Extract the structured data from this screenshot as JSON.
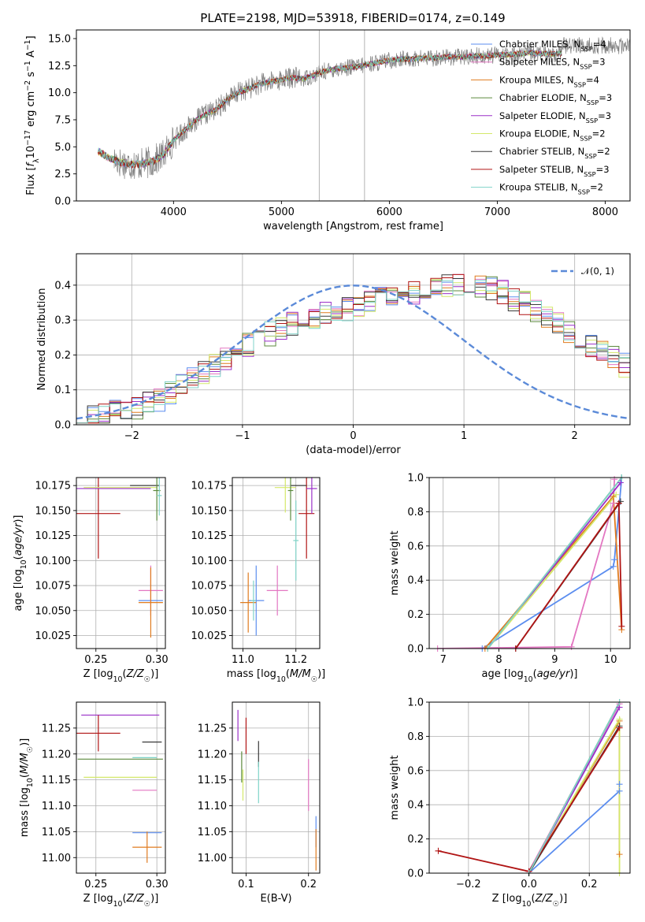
{
  "figure": {
    "title": "PLATE=2198, MJD=53918, FIBERID=0174, z=0.149"
  },
  "colors": {
    "Chabrier MILES": "#5b8def",
    "Salpeter MILES": "#e377c2",
    "Kroupa MILES": "#e07b1f",
    "Chabrier ELODIE": "#5c8a3e",
    "Salpeter ELODIE": "#9b30c8",
    "Kroupa ELODIE": "#d4e86a",
    "Chabrier STELIB": "#3a3a3a",
    "Salpeter STELIB": "#b01414",
    "Kroupa STELIB": "#7fd3c8",
    "data": "#808080",
    "normal": "#5b8ad8"
  },
  "chart_data": [
    {
      "id": "spectrum",
      "type": "line",
      "title": "PLATE=2198, MJD=53918, FIBERID=0174, z=0.149",
      "xlabel": "wavelength [Angstrom, rest frame]",
      "ylabel": "Flux [f_λ 10^-17 erg cm^-2 s^-1 A^-1]",
      "xlim": [
        3100,
        8230
      ],
      "ylim": [
        0,
        15.8
      ],
      "xticks": [
        4000,
        5000,
        6000,
        7000,
        8000
      ],
      "yticks": [
        0.0,
        2.5,
        5.0,
        7.5,
        10.0,
        12.5,
        15.0
      ],
      "grid": false,
      "legend_position": "top-right",
      "legend": [
        {
          "label": "Chabrier MILES, N",
          "sub": "SSP",
          "tail": "=4",
          "series": "Chabrier MILES"
        },
        {
          "label": "Salpeter MILES, N",
          "sub": "SSP",
          "tail": "=3",
          "series": "Salpeter MILES"
        },
        {
          "label": "Kroupa MILES, N",
          "sub": "SSP",
          "tail": "=4",
          "series": "Kroupa MILES"
        },
        {
          "label": "Chabrier ELODIE, N",
          "sub": "SSP",
          "tail": "=3",
          "series": "Chabrier ELODIE"
        },
        {
          "label": "Salpeter ELODIE, N",
          "sub": "SSP",
          "tail": "=3",
          "series": "Salpeter ELODIE"
        },
        {
          "label": "Kroupa ELODIE, N",
          "sub": "SSP",
          "tail": "=2",
          "series": "Kroupa ELODIE"
        },
        {
          "label": "Chabrier STELIB, N",
          "sub": "SSP",
          "tail": "=2",
          "series": "Chabrier STELIB"
        },
        {
          "label": "Salpeter STELIB, N",
          "sub": "SSP",
          "tail": "=3",
          "series": "Salpeter STELIB"
        },
        {
          "label": "Kroupa STELIB, N",
          "sub": "SSP",
          "tail": "=2",
          "series": "Kroupa STELIB"
        }
      ],
      "continuum": {
        "x": [
          3300,
          3400,
          3500,
          3600,
          3700,
          3800,
          3900,
          4000,
          4100,
          4200,
          4300,
          4400,
          4500,
          4600,
          4700,
          4800,
          4900,
          5000,
          5100,
          5200,
          5300,
          5400,
          5500,
          5600,
          5700,
          5800,
          5900,
          6000,
          6100,
          6200,
          6300,
          6400,
          6500,
          6600,
          6700,
          6800,
          6900,
          7000,
          7100,
          7200,
          7300,
          7400,
          7500
        ],
        "y": [
          4.6,
          4.0,
          3.6,
          3.4,
          3.4,
          3.6,
          4.2,
          5.6,
          6.5,
          7.4,
          8.0,
          8.5,
          9.4,
          10.0,
          10.4,
          10.8,
          11.0,
          11.2,
          11.4,
          11.3,
          11.6,
          12.0,
          12.2,
          12.3,
          12.4,
          12.6,
          12.8,
          13.0,
          13.1,
          13.1,
          13.2,
          13.2,
          13.3,
          13.3,
          13.3,
          13.4,
          13.4,
          13.5,
          13.5,
          13.6,
          13.7,
          13.6,
          13.6
        ]
      },
      "model_x_range": [
        3300,
        7600
      ],
      "data_x_range": [
        3450,
        8230
      ],
      "data_excess_above_x": 7600,
      "spikes": [
        {
          "x": 5350,
          "y": 15.8
        },
        {
          "x": 5770,
          "y": 15.8
        }
      ]
    },
    {
      "id": "residuals",
      "type": "histogram",
      "xlabel": "(data-model)/error",
      "ylabel": "Normed distribution",
      "xlim": [
        -2.5,
        2.5
      ],
      "ylim": [
        0,
        0.49
      ],
      "xticks": [
        -2,
        -1,
        0,
        1,
        2
      ],
      "yticks": [
        0.0,
        0.1,
        0.2,
        0.3,
        0.4
      ],
      "grid": true,
      "legend_position": "top-right",
      "normal_label": "𝒩(0, 1)",
      "bin_width": 0.1,
      "bin_start": -2.5,
      "base_profile": [
        0.02,
        0.02,
        0.03,
        0.04,
        0.05,
        0.05,
        0.06,
        0.07,
        0.09,
        0.11,
        0.13,
        0.15,
        0.17,
        0.19,
        0.21,
        0.23,
        0.25,
        0.26,
        0.28,
        0.29,
        0.3,
        0.31,
        0.32,
        0.32,
        0.33,
        0.34,
        0.35,
        0.36,
        0.37,
        0.37,
        0.38,
        0.39,
        0.4,
        0.4,
        0.4,
        0.41,
        0.4,
        0.39,
        0.38,
        0.36,
        0.35,
        0.33,
        0.31,
        0.29,
        0.27,
        0.25,
        0.23,
        0.21,
        0.19,
        0.17,
        0.15
      ]
    },
    {
      "id": "age_vs_Z",
      "type": "scatter",
      "xlabel": "Z [log10(Z/Z☉)]",
      "ylabel": "age  [log10(age/yr)]",
      "xlim": [
        0.234,
        0.307
      ],
      "ylim": [
        10.012,
        10.183
      ],
      "xticks": [
        0.25,
        0.3
      ],
      "xtick_labels": [
        "0.25",
        "0.30"
      ],
      "yticks": [
        10.025,
        10.05,
        10.075,
        10.1,
        10.125,
        10.15,
        10.175
      ],
      "grid": true,
      "points": [
        {
          "series": "Chabrier MILES",
          "x": 0.295,
          "y": 10.06,
          "xerr": 0.01,
          "yerr": 0.0
        },
        {
          "series": "Salpeter MILES",
          "x": 0.295,
          "y": 10.07,
          "xerr": 0.01,
          "yerr": 0.025
        },
        {
          "series": "Kroupa MILES",
          "x": 0.295,
          "y": 10.058,
          "xerr": 0.01,
          "yerr": 0.035
        },
        {
          "series": "Salpeter STELIB",
          "x": 0.252,
          "y": 10.147,
          "xerr": 0.018,
          "yerr": 0.045
        },
        {
          "series": "Kroupa ELODIE",
          "x": 0.27,
          "y": 10.173,
          "xerr": 0.03,
          "yerr": 0.0
        },
        {
          "series": "Salpeter ELODIE",
          "x": 0.26,
          "y": 10.172,
          "xerr": 0.035,
          "yerr": 0.0
        },
        {
          "series": "Chabrier STELIB",
          "x": 0.29,
          "y": 10.175,
          "xerr": 0.012,
          "yerr": 0.0
        },
        {
          "series": "Chabrier ELODIE",
          "x": 0.3,
          "y": 10.17,
          "xerr": 0.003,
          "yerr": 0.03
        },
        {
          "series": "Kroupa STELIB",
          "x": 0.302,
          "y": 10.165,
          "xerr": 0.002,
          "yerr": 0.02
        }
      ]
    },
    {
      "id": "age_vs_mass",
      "type": "scatter",
      "xlabel": "mass [log10(M/M☉)]",
      "ylabel": "",
      "xlim": [
        10.96,
        11.29
      ],
      "ylim": [
        10.012,
        10.183
      ],
      "xticks": [
        11.0,
        11.2
      ],
      "xtick_labels": [
        "11.0",
        "11.2"
      ],
      "yticks": [
        10.025,
        10.05,
        10.075,
        10.1,
        10.125,
        10.15,
        10.175
      ],
      "grid": true,
      "points": [
        {
          "series": "Chabrier MILES",
          "x": 11.05,
          "y": 10.06,
          "xerr": 0.03,
          "yerr": 0.035
        },
        {
          "series": "Kroupa MILES",
          "x": 11.02,
          "y": 10.058,
          "xerr": 0.03,
          "yerr": 0.03
        },
        {
          "series": "Kroupa STELIB",
          "x": 11.04,
          "y": 10.06,
          "xerr": 0.01,
          "yerr": 0.02
        },
        {
          "series": "Salpeter MILES",
          "x": 11.13,
          "y": 10.07,
          "xerr": 0.04,
          "yerr": 0.025
        },
        {
          "series": "Salpeter STELIB",
          "x": 11.24,
          "y": 10.147,
          "xerr": 0.03,
          "yerr": 0.045
        },
        {
          "series": "Kroupa ELODIE",
          "x": 11.16,
          "y": 10.173,
          "xerr": 0.04,
          "yerr": 0.025
        },
        {
          "series": "Salpeter ELODIE",
          "x": 11.26,
          "y": 10.172,
          "xerr": 0.02,
          "yerr": 0.025
        },
        {
          "series": "Chabrier STELIB",
          "x": 11.21,
          "y": 10.175,
          "xerr": 0.03,
          "yerr": 0.0
        },
        {
          "series": "Chabrier ELODIE",
          "x": 11.18,
          "y": 10.17,
          "xerr": 0.01,
          "yerr": 0.03
        },
        {
          "series": "Kroupa STELIB",
          "x": 11.2,
          "y": 10.12,
          "xerr": 0.01,
          "yerr": 0.04
        }
      ]
    },
    {
      "id": "weight_vs_age",
      "type": "line",
      "xlabel": "age  [log10(age/yr)]",
      "ylabel": "mass weight",
      "xlim": [
        6.75,
        10.35
      ],
      "ylim": [
        0,
        1.0
      ],
      "xticks": [
        7,
        8,
        9,
        10
      ],
      "xtick_labels": [
        "7",
        "8",
        "9",
        "10"
      ],
      "yticks": [
        0.0,
        0.2,
        0.4,
        0.6,
        0.8,
        1.0
      ],
      "grid": true,
      "series": [
        {
          "series": "Chabrier MILES",
          "x": [
            7.7,
            10.05,
            10.07,
            10.2
          ],
          "y": [
            0.0,
            0.48,
            0.52,
            1.0
          ]
        },
        {
          "series": "Salpeter MILES",
          "x": [
            6.9,
            9.3,
            10.05,
            10.07
          ],
          "y": [
            0.0,
            0.01,
            0.85,
            0.99
          ]
        },
        {
          "series": "Kroupa MILES",
          "x": [
            7.75,
            10.05,
            10.2
          ],
          "y": [
            0.0,
            0.89,
            0.11
          ]
        },
        {
          "series": "Chabrier ELODIE",
          "x": [
            7.8,
            10.2
          ],
          "y": [
            0.0,
            1.0
          ]
        },
        {
          "series": "Salpeter ELODIE",
          "x": [
            7.8,
            10.18
          ],
          "y": [
            0.0,
            0.97
          ]
        },
        {
          "series": "Kroupa ELODIE",
          "x": [
            7.8,
            10.1
          ],
          "y": [
            0.0,
            0.9
          ]
        },
        {
          "series": "Chabrier STELIB",
          "x": [
            8.3,
            10.18
          ],
          "y": [
            0.0,
            0.86
          ]
        },
        {
          "series": "Salpeter STELIB",
          "x": [
            8.3,
            10.15,
            10.2
          ],
          "y": [
            0.0,
            0.85,
            0.13
          ]
        },
        {
          "series": "Kroupa STELIB",
          "x": [
            7.8,
            10.2
          ],
          "y": [
            0.0,
            1.0
          ]
        }
      ]
    },
    {
      "id": "mass_vs_Z",
      "type": "scatter",
      "xlabel": "Z [log10(Z/Z☉)]",
      "ylabel": "mass [log10(M/M☉)]",
      "xlim": [
        0.234,
        0.307
      ],
      "ylim": [
        10.97,
        11.3
      ],
      "xticks": [
        0.25,
        0.3
      ],
      "xtick_labels": [
        "0.25",
        "0.30"
      ],
      "yticks": [
        11.0,
        11.05,
        11.1,
        11.15,
        11.2,
        11.25
      ],
      "grid": true,
      "points": [
        {
          "series": "Salpeter ELODIE",
          "x": 0.27,
          "y": 11.275,
          "xerr": 0.032,
          "yerr": 0.0
        },
        {
          "series": "Salpeter STELIB",
          "x": 0.252,
          "y": 11.24,
          "xerr": 0.018,
          "yerr": 0.035
        },
        {
          "series": "Chabrier STELIB",
          "x": 0.296,
          "y": 11.223,
          "xerr": 0.008,
          "yerr": 0.0
        },
        {
          "series": "Chabrier ELODIE",
          "x": 0.27,
          "y": 11.19,
          "xerr": 0.035,
          "yerr": 0.0
        },
        {
          "series": "Kroupa STELIB",
          "x": 0.29,
          "y": 11.193,
          "xerr": 0.01,
          "yerr": 0.0
        },
        {
          "series": "Kroupa ELODIE",
          "x": 0.27,
          "y": 11.155,
          "xerr": 0.03,
          "yerr": 0.0
        },
        {
          "series": "Salpeter MILES",
          "x": 0.29,
          "y": 11.13,
          "xerr": 0.01,
          "yerr": 0.0
        },
        {
          "series": "Chabrier MILES",
          "x": 0.292,
          "y": 11.048,
          "xerr": 0.012,
          "yerr": 0.0
        },
        {
          "series": "Kroupa MILES",
          "x": 0.292,
          "y": 11.02,
          "xerr": 0.012,
          "yerr": 0.03
        }
      ]
    },
    {
      "id": "mass_vs_EBV",
      "type": "scatter",
      "xlabel": "E(B-V)",
      "ylabel": "",
      "xlim": [
        0.078,
        0.218
      ],
      "ylim": [
        10.97,
        11.3
      ],
      "xticks": [
        0.1,
        0.2
      ],
      "xtick_labels": [
        "0.1",
        "0.2"
      ],
      "yticks": [
        11.0,
        11.05,
        11.1,
        11.15,
        11.2,
        11.25
      ],
      "grid": true,
      "points": [
        {
          "series": "Salpeter ELODIE",
          "x": 0.087,
          "y": 11.255,
          "xerr": 0.0,
          "yerr": 0.03
        },
        {
          "series": "Salpeter STELIB",
          "x": 0.1,
          "y": 11.235,
          "xerr": 0.0,
          "yerr": 0.035
        },
        {
          "series": "Chabrier ELODIE",
          "x": 0.093,
          "y": 11.175,
          "xerr": 0.0,
          "yerr": 0.03
        },
        {
          "series": "Kroupa ELODIE",
          "x": 0.095,
          "y": 11.14,
          "xerr": 0.0,
          "yerr": 0.03
        },
        {
          "series": "Chabrier STELIB",
          "x": 0.12,
          "y": 11.2,
          "xerr": 0.0,
          "yerr": 0.025
        },
        {
          "series": "Kroupa STELIB",
          "x": 0.12,
          "y": 11.145,
          "xerr": 0.0,
          "yerr": 0.04
        },
        {
          "series": "Salpeter MILES",
          "x": 0.2,
          "y": 11.14,
          "xerr": 0.0,
          "yerr": 0.05
        },
        {
          "series": "Chabrier MILES",
          "x": 0.212,
          "y": 11.05,
          "xerr": 0.0,
          "yerr": 0.03
        },
        {
          "series": "Kroupa MILES",
          "x": 0.212,
          "y": 11.015,
          "xerr": 0.0,
          "yerr": 0.04
        }
      ]
    },
    {
      "id": "weight_vs_Z",
      "type": "line",
      "xlabel": "Z [log10(Z/Z☉)]",
      "ylabel": "mass weight",
      "xlim": [
        -0.33,
        0.335
      ],
      "ylim": [
        0,
        1.0
      ],
      "xticks": [
        -0.2,
        0.0,
        0.2
      ],
      "xtick_labels": [
        "−0.2",
        "0.0",
        "0.2"
      ],
      "yticks": [
        0.0,
        0.2,
        0.4,
        0.6,
        0.8,
        1.0
      ],
      "grid": true,
      "series": [
        {
          "series": "Chabrier MILES",
          "x": [
            0.0,
            0.3,
            0.3
          ],
          "y": [
            0.0,
            0.48,
            0.52
          ]
        },
        {
          "series": "Salpeter MILES",
          "x": [
            0.0,
            0.3
          ],
          "y": [
            0.01,
            0.99
          ]
        },
        {
          "series": "Kroupa MILES",
          "x": [
            0.0,
            0.3,
            0.3
          ],
          "y": [
            0.0,
            0.89,
            0.11
          ]
        },
        {
          "series": "Chabrier ELODIE",
          "x": [
            0.0,
            0.3
          ],
          "y": [
            0.0,
            1.0
          ]
        },
        {
          "series": "Salpeter ELODIE",
          "x": [
            0.0,
            0.3
          ],
          "y": [
            0.0,
            0.97
          ]
        },
        {
          "series": "Kroupa ELODIE",
          "x": [
            0.0,
            0.3,
            0.3
          ],
          "y": [
            0.0,
            0.9,
            0.0
          ]
        },
        {
          "series": "Chabrier STELIB",
          "x": [
            0.0,
            0.3
          ],
          "y": [
            0.0,
            0.86
          ]
        },
        {
          "series": "Salpeter STELIB",
          "x": [
            -0.3,
            0.0,
            0.3
          ],
          "y": [
            0.13,
            0.01,
            0.85
          ]
        },
        {
          "series": "Kroupa STELIB",
          "x": [
            0.0,
            0.3
          ],
          "y": [
            0.0,
            1.0
          ]
        }
      ]
    }
  ]
}
